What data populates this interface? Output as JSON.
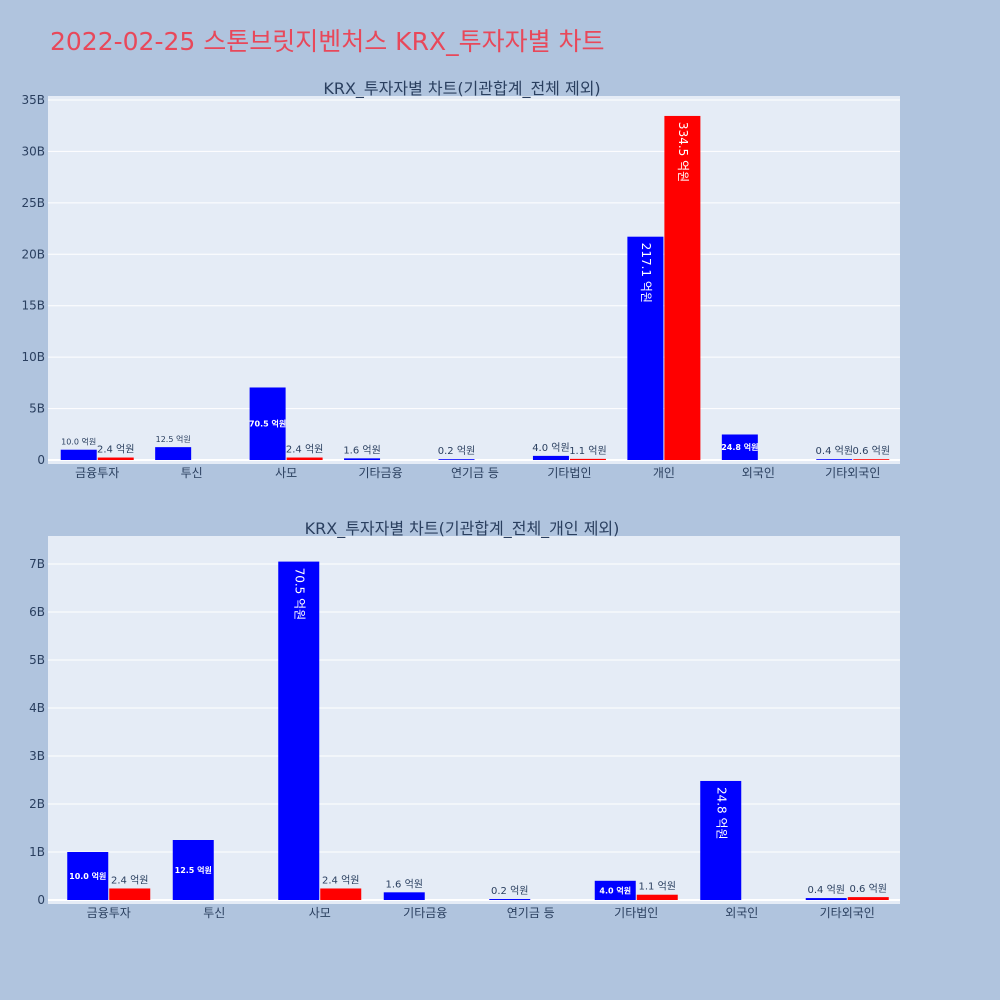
{
  "title": "2022-02-25 스톤브릿지벤처스 KRX_투자자별 차트",
  "colors": {
    "page_bg": "#b0c4de",
    "plot_bg": "#e5ecf6",
    "title": "#e8485a",
    "buy": "#0000ff",
    "sell": "#ff0000",
    "text": "#2a3f5f"
  },
  "chart_data": [
    {
      "type": "bar",
      "title": "KRX_투자자별 차트(기관합계_전체 제외)",
      "categories": [
        "금융투자",
        "투신",
        "사모",
        "기타금융",
        "연기금 등",
        "기타법인",
        "개인",
        "외국인",
        "기타외국인"
      ],
      "ylim": [
        0,
        35000000000
      ],
      "yticks": [
        0,
        5000000000,
        10000000000,
        15000000000,
        20000000000,
        25000000000,
        30000000000,
        35000000000
      ],
      "ytick_labels": [
        "0",
        "5B",
        "10B",
        "15B",
        "20B",
        "25B",
        "30B",
        "35B"
      ],
      "grid": true,
      "series": [
        {
          "color": "#0000ff",
          "values": [
            1000000000,
            1250000000,
            7050000000,
            160000000,
            20000000,
            400000000,
            21710000000,
            2480000000,
            40000000
          ],
          "labels": [
            "10.0 억원",
            "12.5 억원",
            "70.5 억원",
            "1.6 억원",
            "0.2 억원",
            "4.0 억원",
            "217.1 억원",
            "24.8 억원",
            "0.4 억원"
          ]
        },
        {
          "color": "#ff0000",
          "values": [
            240000000,
            null,
            240000000,
            null,
            null,
            110000000,
            33450000000,
            null,
            60000000
          ],
          "labels": [
            "2.4 억원",
            null,
            "2.4 억원",
            null,
            null,
            "1.1 억원",
            "334.5 억원",
            null,
            "0.6 억원"
          ]
        }
      ]
    },
    {
      "type": "bar",
      "title": "KRX_투자자별 차트(기관합계_전체_개인 제외)",
      "categories": [
        "금융투자",
        "투신",
        "사모",
        "기타금융",
        "연기금 등",
        "기타법인",
        "외국인",
        "기타외국인"
      ],
      "ylim": [
        0,
        7500000000
      ],
      "yticks": [
        0,
        1000000000,
        2000000000,
        3000000000,
        4000000000,
        5000000000,
        6000000000,
        7000000000
      ],
      "ytick_labels": [
        "0",
        "1B",
        "2B",
        "3B",
        "4B",
        "5B",
        "6B",
        "7B"
      ],
      "grid": true,
      "series": [
        {
          "color": "#0000ff",
          "values": [
            1000000000,
            1250000000,
            7050000000,
            160000000,
            20000000,
            400000000,
            2480000000,
            40000000
          ],
          "labels": [
            "10.0 억원",
            "12.5 억원",
            "70.5 억원",
            "1.6 억원",
            "0.2 억원",
            "4.0 억원",
            "24.8 억원",
            "0.4 억원"
          ]
        },
        {
          "color": "#ff0000",
          "values": [
            240000000,
            null,
            240000000,
            null,
            null,
            110000000,
            null,
            60000000
          ],
          "labels": [
            "2.4 억원",
            null,
            "2.4 억원",
            null,
            null,
            "1.1 억원",
            null,
            "0.6 억원"
          ]
        }
      ]
    }
  ]
}
